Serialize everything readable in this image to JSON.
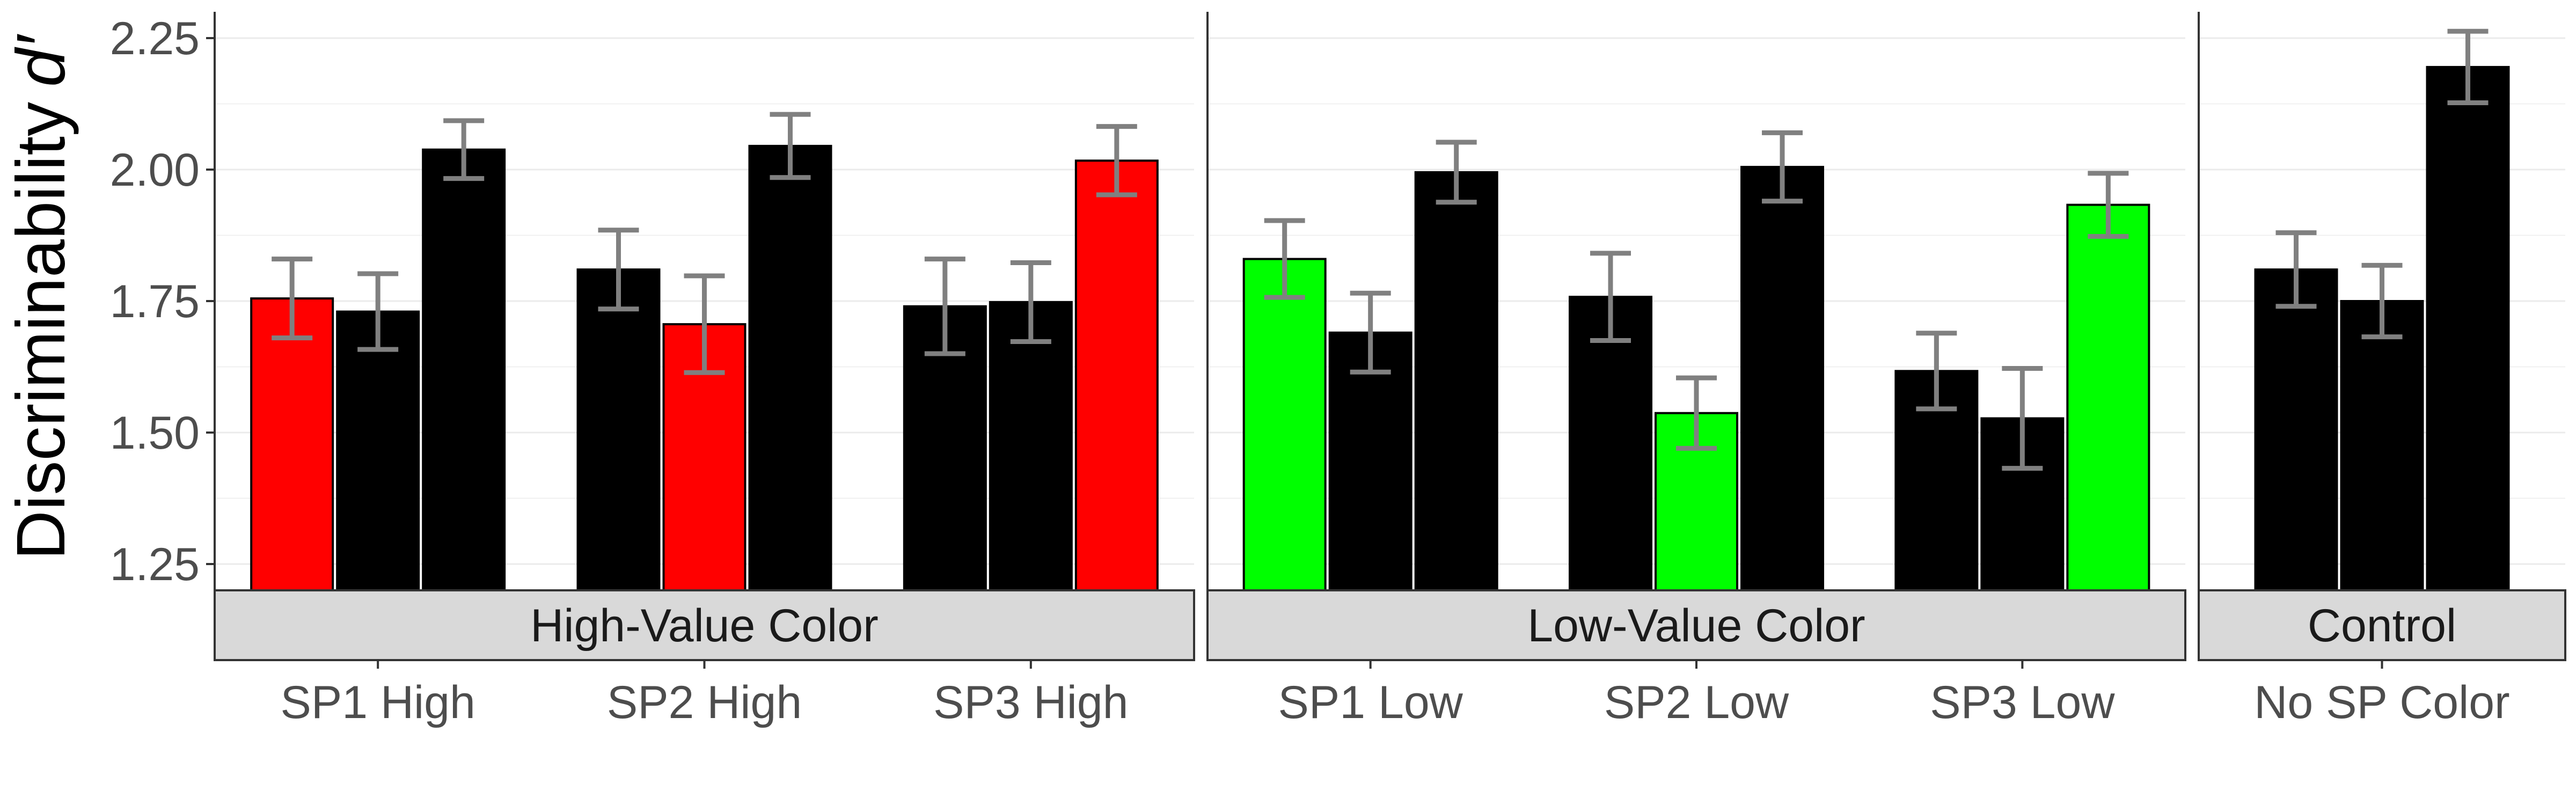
{
  "chart_data": {
    "type": "bar",
    "ylabel": "Discriminability",
    "ylabel_symbol": "d′",
    "ylim": [
      1.2,
      2.3
    ],
    "yticks": [
      "1.25",
      "1.50",
      "1.75",
      "2.00",
      "2.25"
    ],
    "ytick_values": [
      1.25,
      1.5,
      1.75,
      2.0,
      2.25
    ],
    "grid": true,
    "error_bar_color": "#808080",
    "panels": [
      {
        "name": "High-Value Color",
        "groups": [
          {
            "label": "SP1 High",
            "bars": [
              {
                "value": 1.755,
                "err": 0.075,
                "color": "#FF0000"
              },
              {
                "value": 1.73,
                "err": 0.072,
                "color": "#000000"
              },
              {
                "value": 2.038,
                "err": 0.055,
                "color": "#000000"
              }
            ]
          },
          {
            "label": "SP2 High",
            "bars": [
              {
                "value": 1.81,
                "err": 0.075,
                "color": "#000000"
              },
              {
                "value": 1.706,
                "err": 0.092,
                "color": "#FF0000"
              },
              {
                "value": 2.045,
                "err": 0.06,
                "color": "#000000"
              }
            ]
          },
          {
            "label": "SP3 High",
            "bars": [
              {
                "value": 1.74,
                "err": 0.09,
                "color": "#000000"
              },
              {
                "value": 1.748,
                "err": 0.075,
                "color": "#000000"
              },
              {
                "value": 2.017,
                "err": 0.065,
                "color": "#FF0000"
              }
            ]
          }
        ]
      },
      {
        "name": "Low-Value Color",
        "groups": [
          {
            "label": "SP1 Low",
            "bars": [
              {
                "value": 1.83,
                "err": 0.073,
                "color": "#00FF00"
              },
              {
                "value": 1.69,
                "err": 0.075,
                "color": "#000000"
              },
              {
                "value": 1.995,
                "err": 0.057,
                "color": "#000000"
              }
            ]
          },
          {
            "label": "SP2 Low",
            "bars": [
              {
                "value": 1.758,
                "err": 0.083,
                "color": "#000000"
              },
              {
                "value": 1.537,
                "err": 0.067,
                "color": "#00FF00"
              },
              {
                "value": 2.005,
                "err": 0.065,
                "color": "#000000"
              }
            ]
          },
          {
            "label": "SP3 Low",
            "bars": [
              {
                "value": 1.617,
                "err": 0.072,
                "color": "#000000"
              },
              {
                "value": 1.527,
                "err": 0.095,
                "color": "#000000"
              },
              {
                "value": 1.933,
                "err": 0.06,
                "color": "#00FF00"
              }
            ]
          }
        ]
      },
      {
        "name": "Control",
        "groups": [
          {
            "label": "No SP Color",
            "bars": [
              {
                "value": 1.81,
                "err": 0.07,
                "color": "#000000"
              },
              {
                "value": 1.75,
                "err": 0.068,
                "color": "#000000"
              },
              {
                "value": 2.195,
                "err": 0.068,
                "color": "#000000"
              }
            ]
          }
        ]
      }
    ]
  }
}
